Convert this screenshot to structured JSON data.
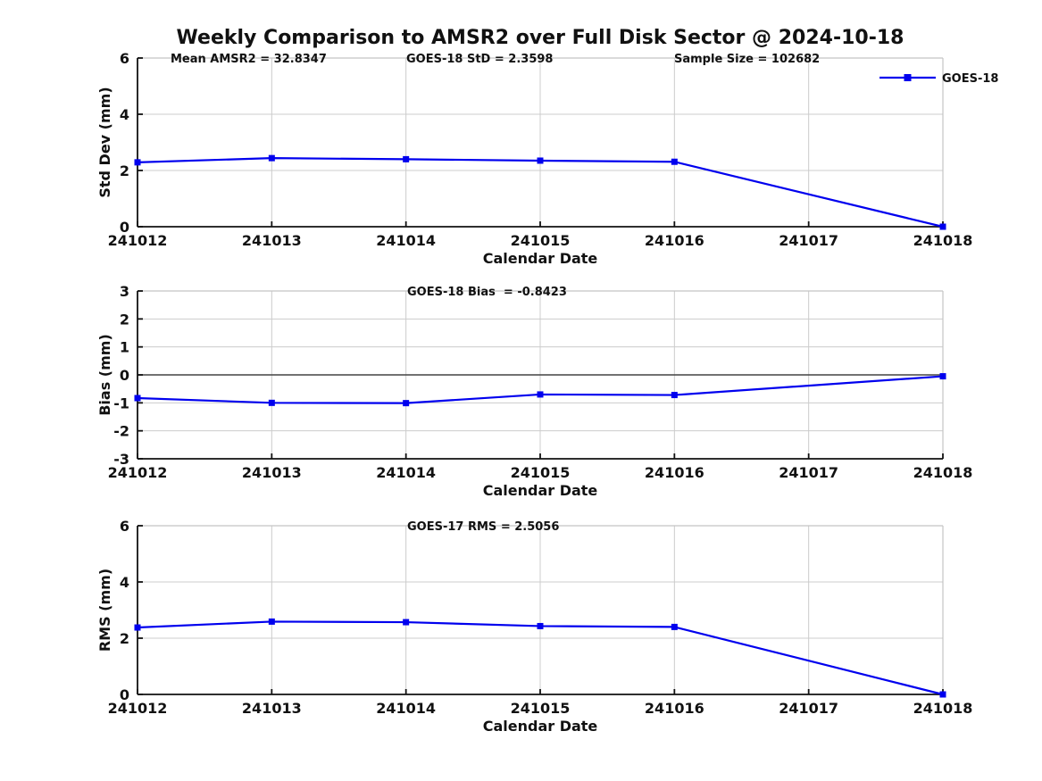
{
  "figure": {
    "title": "Weekly Comparison to AMSR2 over Full Disk Sector @ 2024-10-18",
    "background": "#ffffff"
  },
  "colors": {
    "line": "#0000EE",
    "marker": "#0000EE",
    "grid": "#cccccc",
    "box_spine": "#c4c4c4",
    "axis": "#111111",
    "zero_line": "#444444",
    "text": "#111111"
  },
  "legend": {
    "label": "GOES-18",
    "position": "top-right",
    "marker": "filled-square",
    "line_color": "#0000EE"
  },
  "chart_data": {
    "type": "line",
    "title": "Weekly Comparison to AMSR2 over Full Disk Sector @ 2024-10-18",
    "xlabel": "Calendar Date",
    "x_ticks": [
      "241012",
      "241013",
      "241014",
      "241015",
      "241016",
      "241017",
      "241018"
    ],
    "xlim": [
      241012,
      241018
    ],
    "x": [
      241012,
      241013,
      241014,
      241015,
      241016,
      241018
    ],
    "grid": true,
    "subplots": [
      {
        "name": "std-dev",
        "ylabel": "Std Dev (mm)",
        "ylim": [
          0,
          6
        ],
        "yticks": [
          0,
          2,
          4,
          6
        ],
        "zero_line": false,
        "legend": "GOES-18",
        "series": [
          {
            "name": "GOES-18",
            "values": [
              2.29,
              2.44,
              2.4,
              2.35,
              2.31,
              0.0
            ]
          }
        ],
        "annotations": [
          {
            "text": "Mean AMSR2 = 32.8347",
            "x": 191
          },
          {
            "text": "GOES-18 StD = 2.3598",
            "x": 455
          },
          {
            "text": "Sample Size = 102682",
            "x": 755
          }
        ]
      },
      {
        "name": "bias",
        "ylabel": "Bias (mm)",
        "ylim": [
          -3,
          3
        ],
        "yticks": [
          -3,
          -2,
          -1,
          0,
          1,
          2,
          3
        ],
        "zero_line": true,
        "legend": null,
        "series": [
          {
            "name": "GOES-18",
            "values": [
              -0.83,
              -1.0,
              -1.01,
              -0.7,
              -0.72,
              -0.05
            ]
          }
        ],
        "annotations": [
          {
            "text": "GOES-18 Bias  = -0.8423",
            "x": 456
          }
        ]
      },
      {
        "name": "rms",
        "ylabel": "RMS (mm)",
        "ylim": [
          0,
          6
        ],
        "yticks": [
          0,
          2,
          4,
          6
        ],
        "zero_line": false,
        "legend": null,
        "series": [
          {
            "name": "GOES-18",
            "values": [
              2.38,
              2.59,
              2.57,
              2.43,
              2.4,
              0.0
            ]
          }
        ],
        "annotations": [
          {
            "text": "GOES-17 RMS = 2.5056",
            "x": 456
          }
        ]
      }
    ]
  }
}
